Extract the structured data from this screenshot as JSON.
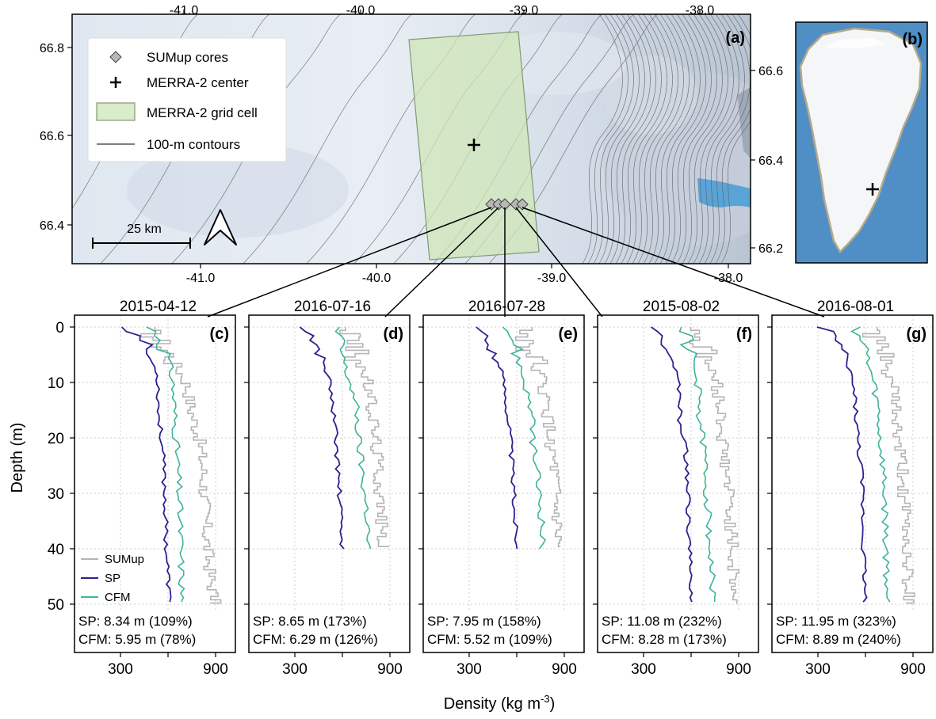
{
  "map": {
    "panel_label": "(a)",
    "top_ticks": [
      "-41.0",
      "-40.0",
      "-39.0",
      "-38.0"
    ],
    "bottom_ticks": [
      "-41.0",
      "-40.0",
      "-39.0",
      "-38.0"
    ],
    "left_ticks": [
      "66.8",
      "66.6",
      "66.4"
    ],
    "right_ticks": [
      "66.6",
      "66.4",
      "66.2"
    ],
    "scalebar_label": "25 km",
    "legend": {
      "cores": "SUMup cores",
      "center": "MERRA-2 center",
      "cell": "MERRA-2 grid cell",
      "contours": "100-m contours"
    },
    "colors": {
      "cell_fill": "#cfe6b8",
      "cell_edge": "#7f9977",
      "ice": "#e6ecf3",
      "ocean": "#5aa3d6"
    }
  },
  "inset": {
    "panel_label": "(b)",
    "colors": {
      "ocean": "#4f8fc6",
      "ice": "#f4f6f8"
    }
  },
  "profiles": {
    "ylabel": "Depth (m)",
    "xlabel_main": "Density (kg m",
    "xlabel_sup": "-3",
    "xlabel_close": ")",
    "yticks": [
      "0",
      "10",
      "20",
      "30",
      "40",
      "50"
    ],
    "xticks": [
      "300",
      "900"
    ],
    "legend": {
      "sumup": "SUMup",
      "sp": "SP",
      "cfm": "CFM"
    },
    "colors": {
      "sumup": "#b5b5b5",
      "sp": "#2a238f",
      "cfm": "#3fb39b"
    },
    "panels": [
      {
        "label": "(c)",
        "date": "2015-04-12",
        "sp_text": "SP: 8.34 m (109%)",
        "cfm_text": "CFM: 5.95 m (78%)"
      },
      {
        "label": "(d)",
        "date": "2016-07-16",
        "sp_text": "SP: 8.65 m (173%)",
        "cfm_text": "CFM: 6.29 m (126%)"
      },
      {
        "label": "(e)",
        "date": "2016-07-28",
        "sp_text": "SP: 7.95 m (158%)",
        "cfm_text": "CFM: 5.52 m (109%)"
      },
      {
        "label": "(f)",
        "date": "2015-08-02",
        "sp_text": "SP: 11.08 m (232%)",
        "cfm_text": "CFM: 8.28 m (173%)"
      },
      {
        "label": "(g)",
        "date": "2016-08-01",
        "sp_text": "SP: 11.95 m (323%)",
        "cfm_text": "CFM: 8.89 m (240%)"
      }
    ]
  },
  "chart_data": {
    "type": "line",
    "ylabel": "Depth (m)",
    "xlabel": "Density (kg m-3)",
    "ylim": [
      50,
      0
    ],
    "xlim": [
      100,
      1000
    ],
    "grid": true,
    "series_names": [
      "SUMup",
      "SP",
      "CFM"
    ],
    "panels": [
      {
        "date": "2015-04-12",
        "max_depth": 50,
        "sp": {
          "depth": [
            0,
            1,
            2,
            3,
            5,
            8,
            10,
            15,
            18,
            20,
            25,
            30,
            40,
            50
          ],
          "density": [
            320,
            380,
            430,
            470,
            470,
            530,
            540,
            540,
            550,
            560,
            570,
            580,
            590,
            610
          ]
        },
        "cfm": {
          "depth": [
            0,
            1,
            2,
            3,
            5,
            8,
            10,
            15,
            20,
            25,
            30,
            40,
            50
          ],
          "density": [
            470,
            520,
            560,
            560,
            590,
            620,
            630,
            640,
            650,
            660,
            670,
            680,
            690
          ]
        },
        "sumup": {
          "depth": [
            0,
            1,
            3,
            5,
            8,
            10,
            15,
            20,
            25,
            30,
            35,
            40,
            45,
            50
          ],
          "density": [
            450,
            500,
            560,
            620,
            680,
            720,
            750,
            800,
            820,
            830,
            840,
            850,
            870,
            900
          ]
        }
      },
      {
        "date": "2016-07-16",
        "max_depth": 40,
        "sp": {
          "depth": [
            0,
            1,
            3,
            5,
            8,
            10,
            15,
            20,
            25,
            30,
            35,
            40
          ],
          "density": [
            330,
            400,
            420,
            460,
            500,
            520,
            540,
            560,
            570,
            580,
            590,
            600
          ]
        },
        "cfm": {
          "depth": [
            0,
            1,
            3,
            5,
            8,
            10,
            15,
            20,
            25,
            30,
            35,
            40
          ],
          "density": [
            560,
            560,
            580,
            600,
            620,
            650,
            690,
            700,
            720,
            740,
            760,
            760
          ]
        },
        "sumup": {
          "depth": [
            0,
            2,
            5,
            8,
            10,
            15,
            20,
            25,
            30,
            35,
            40
          ],
          "density": [
            650,
            660,
            690,
            740,
            760,
            790,
            810,
            830,
            840,
            850,
            860
          ]
        }
      },
      {
        "date": "2016-07-28",
        "max_depth": 40,
        "sp": {
          "depth": [
            0,
            1,
            3,
            5,
            8,
            10,
            15,
            20,
            25,
            30,
            35,
            38
          ],
          "density": [
            330,
            400,
            420,
            460,
            500,
            520,
            540,
            560,
            570,
            580,
            590,
            600
          ]
        },
        "cfm": {
          "depth": [
            0,
            1,
            3,
            5,
            8,
            10,
            15,
            20,
            25,
            30,
            35,
            40
          ],
          "density": [
            560,
            560,
            590,
            600,
            630,
            650,
            690,
            700,
            720,
            740,
            760,
            760
          ]
        },
        "sumup": {
          "depth": [
            0,
            2,
            5,
            8,
            10,
            15,
            20,
            25,
            30,
            35,
            40
          ],
          "density": [
            650,
            660,
            700,
            740,
            760,
            790,
            810,
            830,
            840,
            850,
            860
          ]
        }
      },
      {
        "date": "2015-08-02",
        "max_depth": 50,
        "sp": {
          "depth": [
            0,
            1,
            3,
            5,
            8,
            10,
            15,
            18,
            20,
            25,
            30,
            40,
            50
          ],
          "density": [
            320,
            400,
            430,
            470,
            500,
            520,
            530,
            520,
            560,
            570,
            580,
            590,
            600
          ]
        },
        "cfm": {
          "depth": [
            0,
            1,
            3,
            5,
            8,
            10,
            15,
            20,
            25,
            30,
            40,
            50
          ],
          "density": [
            560,
            560,
            580,
            600,
            620,
            640,
            650,
            670,
            690,
            700,
            720,
            740
          ]
        },
        "sumup": {
          "depth": [
            0,
            3,
            5,
            8,
            10,
            15,
            20,
            25,
            30,
            35,
            40,
            45,
            50
          ],
          "density": [
            650,
            660,
            700,
            730,
            760,
            790,
            800,
            820,
            840,
            850,
            860,
            870,
            880
          ]
        }
      },
      {
        "date": "2016-08-01",
        "max_depth": 50,
        "sp": {
          "depth": [
            0,
            1,
            3,
            5,
            8,
            10,
            15,
            20,
            25,
            30,
            40,
            50
          ],
          "density": [
            320,
            400,
            420,
            460,
            500,
            520,
            540,
            550,
            570,
            580,
            590,
            600
          ]
        },
        "cfm": {
          "depth": [
            0,
            1,
            3,
            5,
            8,
            10,
            15,
            20,
            25,
            30,
            40,
            50
          ],
          "density": [
            560,
            560,
            580,
            600,
            630,
            650,
            680,
            690,
            710,
            720,
            730,
            740
          ]
        },
        "sumup": {
          "depth": [
            0,
            3,
            5,
            8,
            10,
            15,
            20,
            25,
            30,
            35,
            40,
            45,
            50
          ],
          "density": [
            650,
            670,
            700,
            740,
            770,
            790,
            800,
            830,
            840,
            850,
            860,
            870,
            880
          ]
        }
      }
    ]
  }
}
